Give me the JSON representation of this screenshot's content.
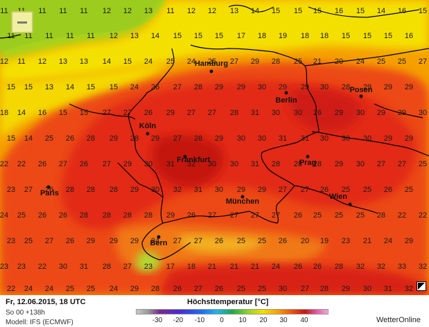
{
  "map": {
    "grid_numbers": [
      [
        "11",
        "11",
        "11",
        "11",
        "11",
        "12",
        "12",
        "13",
        "11",
        "12",
        "12",
        "13",
        "14",
        "15",
        "15",
        "15",
        "16",
        "15",
        "14",
        "16",
        "15",
        "15",
        "17",
        "18",
        "15"
      ],
      [
        "11",
        "11",
        "11",
        "11",
        "11",
        "12",
        "13",
        "14",
        "15",
        "15",
        "15",
        "17",
        "18",
        "19",
        "18",
        "18",
        "15",
        "15",
        "15",
        "16",
        "17",
        "17",
        "18",
        "20",
        "21"
      ],
      [
        "12",
        "11",
        "12",
        "13",
        "13",
        "14",
        "15",
        "24",
        "25",
        "24",
        "25",
        "27",
        "29",
        "28",
        "25",
        "21",
        "20",
        "24",
        "25",
        "25",
        "27",
        "27",
        "29"
      ],
      [
        "15",
        "15",
        "13",
        "14",
        "15",
        "15",
        "24",
        "26",
        "27",
        "28",
        "29",
        "29",
        "30",
        "29",
        "29",
        "30",
        "28",
        "29",
        "29",
        "29",
        "25",
        "24",
        "27"
      ],
      [
        "18",
        "14",
        "16",
        "15",
        "15",
        "27",
        "27",
        "26",
        "29",
        "27",
        "27",
        "28",
        "31",
        "30",
        "30",
        "26",
        "29",
        "30",
        "29",
        "29",
        "30",
        "29",
        "28"
      ],
      [
        "15",
        "14",
        "25",
        "26",
        "28",
        "29",
        "28",
        "29",
        "27",
        "28",
        "29",
        "30",
        "30",
        "31",
        "31",
        "30",
        "30",
        "30",
        "29",
        "29",
        "29",
        "29",
        "30",
        "29"
      ],
      [
        "22",
        "22",
        "26",
        "27",
        "26",
        "27",
        "29",
        "30",
        "31",
        "32",
        "30",
        "30",
        "31",
        "28",
        "28",
        "28",
        "29",
        "30",
        "27",
        "27",
        "25",
        "25",
        "23"
      ],
      [
        "23",
        "27",
        "26",
        "28",
        "28",
        "28",
        "29",
        "30",
        "32",
        "31",
        "30",
        "29",
        "29",
        "27",
        "27",
        "26",
        "25",
        "25",
        "26",
        "25",
        "25",
        "24",
        "23"
      ],
      [
        "24",
        "25",
        "26",
        "26",
        "28",
        "28",
        "28",
        "28",
        "29",
        "26",
        "27",
        "27",
        "27",
        "27",
        "26",
        "25",
        "25",
        "25",
        "28",
        "22",
        "22",
        "24",
        "23"
      ],
      [
        "23",
        "25",
        "27",
        "26",
        "29",
        "29",
        "29",
        "24",
        "27",
        "27",
        "26",
        "25",
        "25",
        "26",
        "20",
        "19",
        "23",
        "21",
        "24",
        "29",
        "29",
        "26"
      ],
      [
        "23",
        "23",
        "22",
        "30",
        "31",
        "28",
        "27",
        "23",
        "17",
        "18",
        "21",
        "21",
        "21",
        "24",
        "26",
        "26",
        "28",
        "32",
        "32",
        "33",
        "32"
      ],
      [
        "22",
        "24",
        "24",
        "25",
        "25",
        "24",
        "29",
        "28",
        "26",
        "27",
        "26",
        "25",
        "25",
        "30",
        "27",
        "28",
        "29",
        "30",
        "31",
        "32",
        "32"
      ],
      [
        "27",
        "30",
        "32",
        "32",
        "32",
        "32",
        "30",
        "32",
        "30",
        "30",
        "30",
        "27",
        "28",
        "27",
        "28",
        "28",
        "29",
        "30",
        "30",
        "31",
        "29"
      ]
    ],
    "cities": [
      {
        "name": "Hamburg"
      },
      {
        "name": "Berlin"
      },
      {
        "name": "Posen"
      },
      {
        "name": "Köln"
      },
      {
        "name": "Frankfurt"
      },
      {
        "name": "Prag"
      },
      {
        "name": "Paris"
      },
      {
        "name": "München"
      },
      {
        "name": "Wien"
      },
      {
        "name": "Bern"
      }
    ]
  },
  "footer": {
    "date": "Fr, 12.06.2015, 18 UTC",
    "run": "So 00 +138h",
    "model": "Modell: IFS (ECMWF)",
    "legend_title": "Höchsttemperatur [°C]",
    "legend_ticks": [
      "-30",
      "-20",
      "-10",
      "0",
      "10",
      "20",
      "30",
      "40"
    ],
    "brand": "WetterOnline"
  },
  "colors": {
    "cool": "#9ccc1e",
    "yellow": "#f6e600",
    "orange": "#f5a300",
    "red_orange": "#f06a10",
    "red": "#e83216",
    "deep_red": "#c61a14",
    "border": "#000000"
  },
  "icons": {
    "zoom_out": "minus-icon",
    "corner": "expand-icon"
  }
}
